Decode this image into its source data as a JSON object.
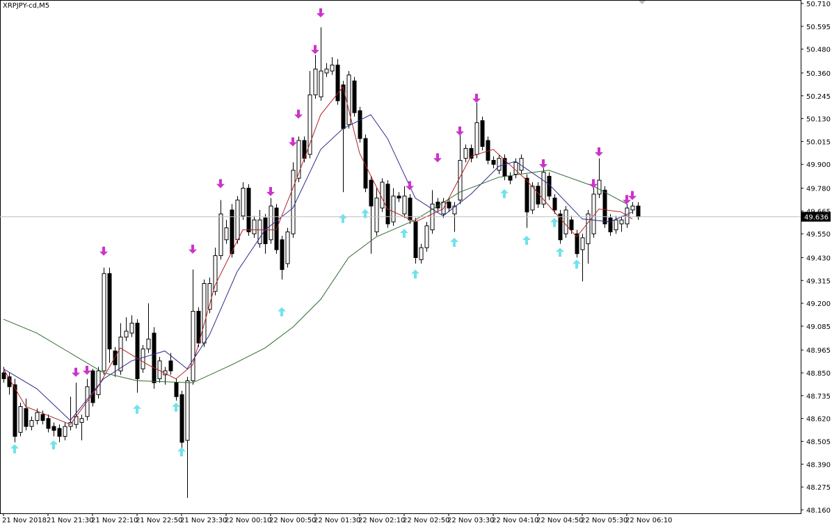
{
  "chart_data": {
    "type": "candlestick",
    "title": "XRPJPY-cd,M5",
    "ylim": [
      48.1425,
      50.7275
    ],
    "xlim": [
      -0.625,
      143.25
    ],
    "yticks": [
      {
        "value": 50.71,
        "label": "50.710"
      },
      50.595,
      {
        "value": 50.48,
        "label": "50.480"
      },
      {
        "value": 50.36,
        "label": "50.360"
      },
      50.245,
      {
        "value": 50.13,
        "label": "50.130"
      },
      50.015,
      {
        "value": 49.9,
        "label": "49.900"
      },
      {
        "value": 49.78,
        "label": "49.780"
      },
      49.665,
      {
        "value": 49.55,
        "label": "49.550"
      },
      {
        "value": 49.43,
        "label": "49.430"
      },
      49.315,
      {
        "value": 49.2,
        "label": "49.200"
      },
      49.085,
      48.965,
      {
        "value": 48.85,
        "label": "48.850"
      },
      48.735,
      {
        "value": 48.62,
        "label": "48.620"
      },
      48.505,
      {
        "value": 48.39,
        "label": "48.390"
      },
      48.275,
      {
        "value": 48.16,
        "label": "48.160"
      }
    ],
    "xticks": [
      {
        "value": 0,
        "label": "21 Nov 2018"
      },
      {
        "value": 8,
        "label": "21 Nov 21:30"
      },
      {
        "value": 16,
        "label": "21 Nov 22:10"
      },
      {
        "value": 24,
        "label": "21 Nov 22:50"
      },
      {
        "value": 32,
        "label": "21 Nov 23:30"
      },
      {
        "value": 40,
        "label": "22 Nov 00:10"
      },
      {
        "value": 48,
        "label": "22 Nov 00:50"
      },
      {
        "value": 56,
        "label": "22 Nov 01:30"
      },
      {
        "value": 64,
        "label": "22 Nov 02:10"
      },
      {
        "value": 72,
        "label": "22 Nov 02:50"
      },
      {
        "value": 80,
        "label": "22 Nov 03:30"
      },
      {
        "value": 88,
        "label": "22 Nov 04:10"
      },
      {
        "value": 96,
        "label": "22 Nov 04:50"
      },
      {
        "value": 104,
        "label": "22 Nov 05:30"
      },
      {
        "value": 112,
        "label": "22 Nov 06:10"
      }
    ],
    "last_price": 49.636,
    "candles": [
      [
        48.85,
        48.88,
        48.8,
        48.82
      ],
      [
        48.83,
        48.85,
        48.74,
        48.78
      ],
      [
        48.79,
        48.82,
        48.5,
        48.53
      ],
      [
        48.55,
        48.7,
        48.53,
        48.68
      ],
      [
        48.67,
        48.72,
        48.56,
        48.58
      ],
      [
        48.58,
        48.63,
        48.56,
        48.61
      ],
      [
        48.61,
        48.67,
        48.59,
        48.65
      ],
      [
        48.64,
        48.66,
        48.59,
        48.61
      ],
      [
        48.62,
        48.64,
        48.55,
        48.57
      ],
      [
        48.58,
        48.6,
        48.53,
        48.56
      ],
      [
        48.57,
        48.59,
        48.5,
        48.53
      ],
      [
        48.53,
        48.6,
        48.51,
        48.58
      ],
      [
        48.58,
        48.73,
        48.56,
        48.6
      ],
      [
        48.59,
        48.8,
        48.57,
        48.63
      ],
      [
        48.6,
        48.64,
        48.51,
        48.62
      ],
      [
        48.63,
        48.82,
        48.61,
        48.78
      ],
      [
        48.86,
        48.87,
        48.68,
        48.7
      ],
      [
        48.74,
        48.88,
        48.72,
        48.86
      ],
      [
        48.86,
        49.38,
        48.84,
        49.35
      ],
      [
        49.35,
        49.38,
        48.9,
        48.97
      ],
      [
        48.96,
        48.98,
        48.83,
        48.89
      ],
      [
        48.86,
        49.1,
        48.84,
        49.03
      ],
      [
        49.03,
        49.13,
        49.01,
        49.06
      ],
      [
        49.05,
        49.14,
        49.03,
        49.1
      ],
      [
        49.1,
        49.12,
        48.75,
        48.82
      ],
      [
        48.87,
        48.99,
        48.85,
        48.97
      ],
      [
        48.97,
        49.2,
        48.95,
        49.02
      ],
      [
        49.05,
        49.08,
        48.77,
        48.8
      ],
      [
        48.82,
        48.93,
        48.8,
        48.91
      ],
      [
        48.84,
        48.88,
        48.79,
        48.86
      ],
      [
        48.91,
        48.95,
        48.84,
        48.86
      ],
      [
        48.8,
        48.82,
        48.71,
        48.73
      ],
      [
        48.74,
        48.76,
        48.45,
        48.5
      ],
      [
        48.51,
        48.83,
        48.22,
        48.81
      ],
      [
        48.81,
        49.37,
        48.79,
        49.16
      ],
      [
        49.16,
        49.18,
        48.98,
        49.0
      ],
      [
        49.0,
        49.32,
        48.98,
        49.3
      ],
      [
        49.17,
        49.33,
        49.15,
        49.3
      ],
      [
        49.26,
        49.48,
        49.24,
        49.44
      ],
      [
        49.44,
        49.72,
        49.42,
        49.65
      ],
      [
        49.52,
        49.62,
        49.5,
        49.58
      ],
      [
        49.67,
        49.7,
        49.43,
        49.45
      ],
      [
        49.52,
        49.74,
        49.5,
        49.72
      ],
      [
        49.64,
        49.81,
        49.62,
        49.78
      ],
      [
        49.78,
        49.8,
        49.54,
        49.56
      ],
      [
        49.55,
        49.64,
        49.53,
        49.62
      ],
      [
        49.5,
        49.67,
        49.48,
        49.62
      ],
      [
        49.63,
        49.65,
        49.45,
        49.5
      ],
      [
        49.52,
        49.73,
        49.5,
        49.69
      ],
      [
        49.68,
        49.7,
        49.45,
        49.47
      ],
      [
        49.52,
        49.54,
        49.32,
        49.37
      ],
      [
        49.4,
        49.58,
        49.38,
        49.56
      ],
      [
        49.55,
        49.91,
        49.53,
        49.87
      ],
      [
        49.83,
        50.04,
        49.81,
        50.02
      ],
      [
        50.02,
        50.04,
        49.91,
        49.93
      ],
      [
        49.95,
        50.37,
        49.93,
        50.25
      ],
      [
        50.25,
        50.45,
        50.23,
        50.38
      ],
      [
        50.24,
        50.59,
        50.22,
        50.37
      ],
      [
        50.36,
        50.41,
        50.34,
        50.38
      ],
      [
        50.37,
        50.44,
        50.35,
        50.4
      ],
      [
        50.4,
        50.43,
        50.2,
        50.22
      ],
      [
        50.3,
        50.32,
        49.76,
        50.08
      ],
      [
        50.1,
        50.37,
        50.08,
        50.35
      ],
      [
        50.32,
        50.34,
        50.14,
        50.16
      ],
      [
        50.17,
        50.19,
        50.01,
        50.03
      ],
      [
        50.03,
        50.05,
        49.76,
        49.78
      ],
      [
        49.82,
        49.84,
        49.45,
        49.69
      ],
      [
        49.56,
        49.78,
        49.54,
        49.73
      ],
      [
        49.68,
        49.83,
        49.66,
        49.81
      ],
      [
        49.8,
        49.82,
        49.58,
        49.6
      ],
      [
        49.61,
        49.78,
        49.59,
        49.74
      ],
      [
        49.74,
        49.76,
        49.71,
        49.73
      ],
      [
        49.65,
        49.79,
        49.63,
        49.74
      ],
      [
        49.73,
        49.75,
        49.6,
        49.62
      ],
      [
        49.61,
        49.63,
        49.4,
        49.43
      ],
      [
        49.42,
        49.5,
        49.4,
        49.48
      ],
      [
        49.48,
        49.61,
        49.46,
        49.59
      ],
      [
        49.57,
        49.77,
        49.55,
        49.7
      ],
      [
        49.71,
        49.73,
        49.66,
        49.68
      ],
      [
        49.65,
        49.73,
        49.63,
        49.71
      ],
      [
        49.71,
        49.73,
        49.66,
        49.68
      ],
      [
        49.65,
        49.71,
        49.56,
        49.69
      ],
      [
        49.72,
        50.06,
        49.7,
        49.92
      ],
      [
        49.93,
        50.0,
        49.91,
        49.98
      ],
      [
        49.98,
        50.0,
        49.91,
        49.93
      ],
      [
        49.95,
        50.21,
        49.93,
        50.11
      ],
      [
        50.12,
        50.14,
        49.97,
        49.99
      ],
      [
        50.02,
        50.04,
        49.9,
        49.92
      ],
      [
        49.92,
        49.94,
        49.88,
        49.9
      ],
      [
        49.87,
        49.95,
        49.85,
        49.93
      ],
      [
        49.93,
        49.95,
        49.82,
        49.84
      ],
      [
        49.84,
        49.86,
        49.8,
        49.82
      ],
      [
        49.85,
        49.93,
        49.83,
        49.91
      ],
      [
        49.87,
        49.95,
        49.85,
        49.93
      ],
      [
        49.83,
        49.85,
        49.58,
        49.66
      ],
      [
        49.67,
        49.81,
        49.65,
        49.79
      ],
      [
        49.79,
        49.81,
        49.68,
        49.7
      ],
      [
        49.7,
        49.88,
        49.68,
        49.86
      ],
      [
        49.84,
        49.86,
        49.72,
        49.74
      ],
      [
        49.73,
        49.75,
        49.65,
        49.67
      ],
      [
        49.65,
        49.67,
        49.5,
        49.52
      ],
      [
        49.55,
        49.69,
        49.53,
        49.67
      ],
      [
        49.62,
        49.64,
        49.55,
        49.57
      ],
      [
        49.55,
        49.57,
        49.43,
        49.45
      ],
      [
        49.47,
        49.55,
        49.31,
        49.53
      ],
      [
        49.5,
        49.67,
        49.4,
        49.65
      ],
      [
        49.55,
        49.8,
        49.53,
        49.75
      ],
      [
        49.75,
        49.93,
        49.73,
        49.82
      ],
      [
        49.77,
        49.79,
        49.58,
        49.6
      ],
      [
        49.63,
        49.65,
        49.54,
        49.56
      ],
      [
        49.57,
        49.64,
        49.55,
        49.62
      ],
      [
        49.6,
        49.64,
        49.56,
        49.62
      ],
      [
        49.6,
        49.7,
        49.58,
        49.68
      ],
      [
        49.67,
        49.71,
        49.65,
        49.69
      ],
      [
        49.69,
        49.71,
        49.62,
        49.636
      ]
    ],
    "series": [
      {
        "color": "#b22222",
        "x": [
          0,
          4,
          12,
          17,
          21,
          26,
          31,
          34,
          38,
          43,
          49,
          53,
          57,
          61,
          64,
          69,
          74,
          79,
          84,
          88,
          94,
          99,
          103,
          107,
          111,
          113
        ],
        "values": [
          48.87,
          48.68,
          48.59,
          48.78,
          48.975,
          48.89,
          48.82,
          48.89,
          49.29,
          49.57,
          49.57,
          49.85,
          50.15,
          50.29,
          49.955,
          49.675,
          49.61,
          49.675,
          49.94,
          49.975,
          49.82,
          49.66,
          49.535,
          49.675,
          49.66,
          49.625
        ]
      },
      {
        "color": "#2a2a8c",
        "x": [
          0,
          6,
          12,
          18,
          23,
          29,
          33,
          37,
          42,
          47,
          52,
          57,
          61,
          66,
          69,
          74,
          79,
          84,
          89,
          92,
          98,
          104,
          109,
          113
        ],
        "values": [
          48.87,
          48.77,
          48.61,
          48.82,
          48.91,
          48.96,
          48.87,
          49.04,
          49.36,
          49.57,
          49.68,
          49.975,
          50.08,
          50.15,
          50.03,
          49.73,
          49.64,
          49.75,
          49.89,
          49.915,
          49.8,
          49.625,
          49.61,
          49.66
        ]
      },
      {
        "color": "#2e6b2e",
        "x": [
          0,
          6,
          12,
          18,
          24,
          34,
          41,
          47,
          52,
          57,
          62,
          67,
          74,
          82,
          89,
          98,
          106,
          112
        ],
        "values": [
          49.12,
          49.05,
          48.95,
          48.85,
          48.81,
          48.8,
          48.89,
          48.975,
          49.08,
          49.22,
          49.43,
          49.535,
          49.62,
          49.76,
          49.835,
          49.87,
          49.79,
          49.7
        ]
      }
    ],
    "sell_arrows": {
      "color": "#cc33cc",
      "x": [
        13,
        15,
        18,
        34,
        39,
        48,
        52,
        53,
        56,
        57,
        73,
        78,
        82,
        85,
        97,
        106,
        107,
        112,
        113
      ],
      "values": [
        48.83,
        48.84,
        49.44,
        49.45,
        49.78,
        49.74,
        49.99,
        50.13,
        50.455,
        50.64,
        49.77,
        49.91,
        50.045,
        50.21,
        49.88,
        49.78,
        49.94,
        49.7,
        49.72
      ]
    },
    "buy_arrows": {
      "color": "#6fe3ea",
      "x": [
        2,
        9,
        24,
        31,
        32,
        50,
        61,
        65,
        72,
        74,
        81,
        90,
        94,
        99,
        100,
        103
      ],
      "values": [
        48.49,
        48.51,
        48.69,
        48.7,
        48.475,
        49.18,
        49.65,
        49.675,
        49.575,
        49.37,
        49.53,
        49.775,
        49.54,
        49.63,
        49.48,
        49.42
      ]
    }
  }
}
